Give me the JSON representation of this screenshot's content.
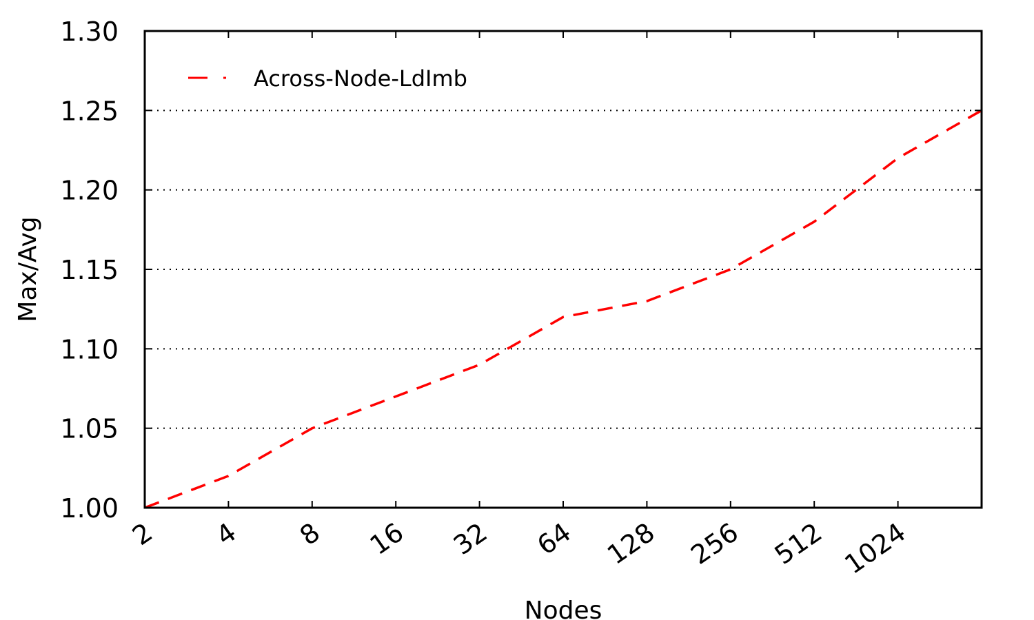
{
  "chart_data": {
    "type": "line",
    "xlabel": "Nodes",
    "ylabel": "Max/Avg",
    "x_scale": "log2",
    "x_ticks": [
      "2",
      "4",
      "8",
      "16",
      "32",
      "64",
      "128",
      "256",
      "512",
      "1024"
    ],
    "xlim": [
      2,
      2048
    ],
    "ylim": [
      1.0,
      1.3
    ],
    "y_ticks": [
      "1.00",
      "1.05",
      "1.10",
      "1.15",
      "1.20",
      "1.25",
      "1.30"
    ],
    "grid": "horizontal dotted",
    "legend_position": "top-left",
    "series": [
      {
        "name": "Across-Node-LdImb",
        "color": "#ff0000",
        "line_style": "dashed",
        "x": [
          2,
          4,
          8,
          16,
          32,
          64,
          128,
          256,
          512,
          1024,
          2048
        ],
        "y": [
          1.0,
          1.02,
          1.05,
          1.07,
          1.09,
          1.12,
          1.13,
          1.15,
          1.18,
          1.22,
          1.25
        ]
      }
    ]
  }
}
